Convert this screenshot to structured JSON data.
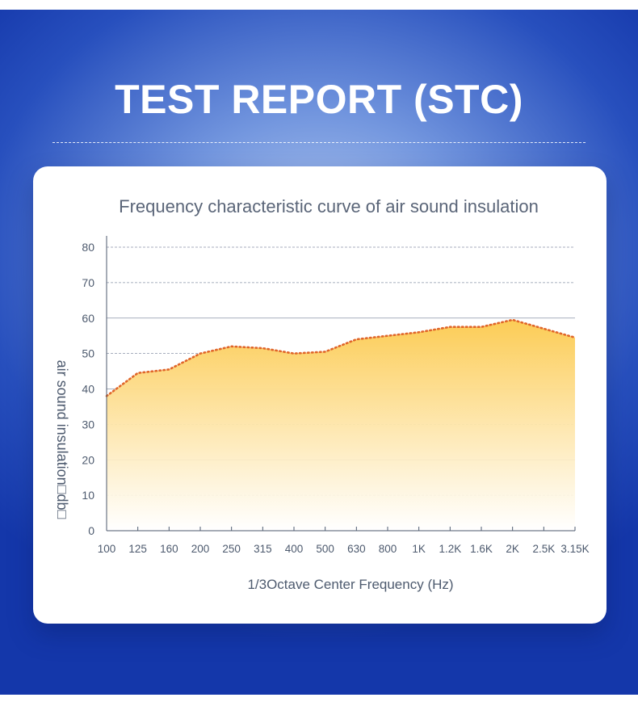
{
  "header": {
    "title": "TEST REPORT (STC)"
  },
  "chart_data": {
    "type": "area",
    "title": "Frequency characteristic curve of air sound insulation",
    "xlabel": "1/3Octave Center Frequency (Hz)",
    "ylabel": "air sound insulation□db□",
    "categories": [
      "100",
      "125",
      "160",
      "200",
      "250",
      "315",
      "400",
      "500",
      "630",
      "800",
      "1K",
      "1.2K",
      "1.6K",
      "2K",
      "2.5K",
      "3.15K"
    ],
    "ylim": [
      0,
      80
    ],
    "yticks": [
      "0",
      "10",
      "20",
      "30",
      "40",
      "50",
      "60",
      "70",
      "80"
    ],
    "grid": true,
    "series": [
      {
        "values": [
          38,
          44.5,
          45.5,
          50,
          52,
          51.5,
          50,
          50.5,
          54,
          55,
          56,
          57.5,
          57.5,
          59.5,
          57,
          54.5
        ],
        "color": "#e0662a",
        "fill_top": "#fccc55",
        "fill_bottom": "#ffffff"
      }
    ]
  }
}
